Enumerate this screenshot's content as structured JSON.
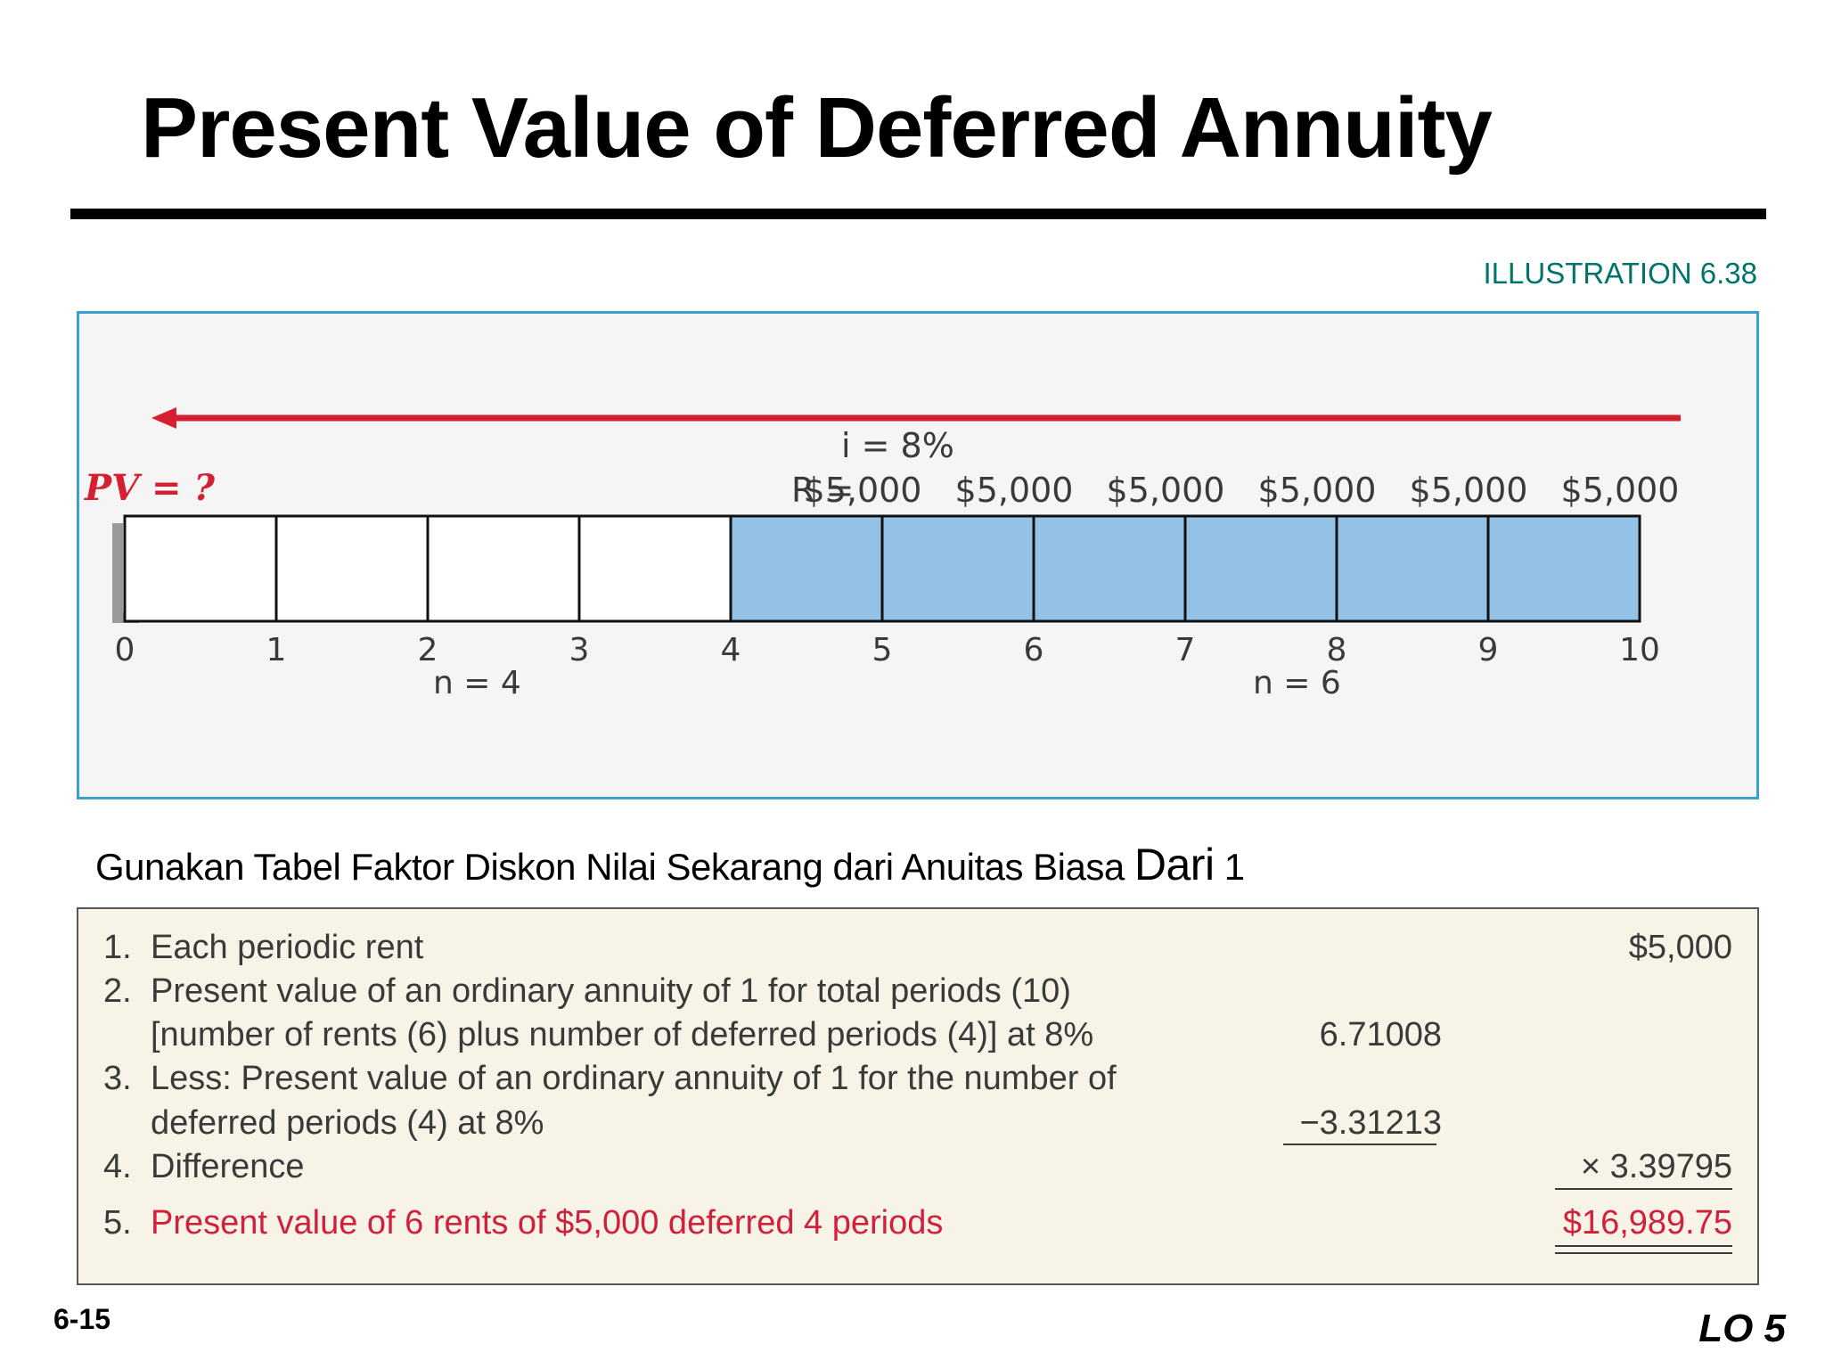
{
  "title": "Present Value of Deferred Annuity",
  "illustration_label": "ILLUSTRATION 6.38",
  "timeline": {
    "pv_label": "PV = ?",
    "rate_label": "i = 8%",
    "rent_prefix": "R = ",
    "rents": [
      "$5,000",
      "$5,000",
      "$5,000",
      "$5,000",
      "$5,000",
      "$5,000"
    ],
    "periods": [
      "0",
      "1",
      "2",
      "3",
      "4",
      "5",
      "6",
      "7",
      "8",
      "9",
      "10"
    ],
    "n_deferred_label": "n = 4",
    "n_rents_label": "n = 6",
    "colors": {
      "arrow": "#d42030",
      "shaded": "#94c1e6",
      "pv_label": "#d42030"
    }
  },
  "subtitle": {
    "text": "Gunakan Tabel Faktor Diskon Nilai Sekarang dari Anuitas Biasa ",
    "emphasis": "Dari",
    "tail": " 1"
  },
  "computation": {
    "rows": [
      {
        "number": "1.",
        "lines": [
          "Each periodic rent"
        ],
        "middle": "",
        "right": "$5,000"
      },
      {
        "number": "2.",
        "lines": [
          "Present value of an ordinary annuity of 1 for total periods (10)",
          "[number of rents (6) plus number of deferred periods (4)] at 8%"
        ],
        "middle": "6.71008",
        "right": ""
      },
      {
        "number": "3.",
        "lines": [
          "Less: Present value of an ordinary annuity of 1 for the number of",
          "deferred periods (4) at 8%"
        ],
        "middle": "−3.31213",
        "right": ""
      },
      {
        "number": "4.",
        "lines": [
          "Difference"
        ],
        "middle": "",
        "right": "× 3.39795"
      },
      {
        "number": "5.",
        "lines": [
          "Present value of 6 rents of $5,000 deferred 4 periods"
        ],
        "middle": "",
        "right": "$16,989.75"
      }
    ]
  },
  "footer": {
    "page_number": "6-15",
    "lo_label": "LO 5"
  }
}
